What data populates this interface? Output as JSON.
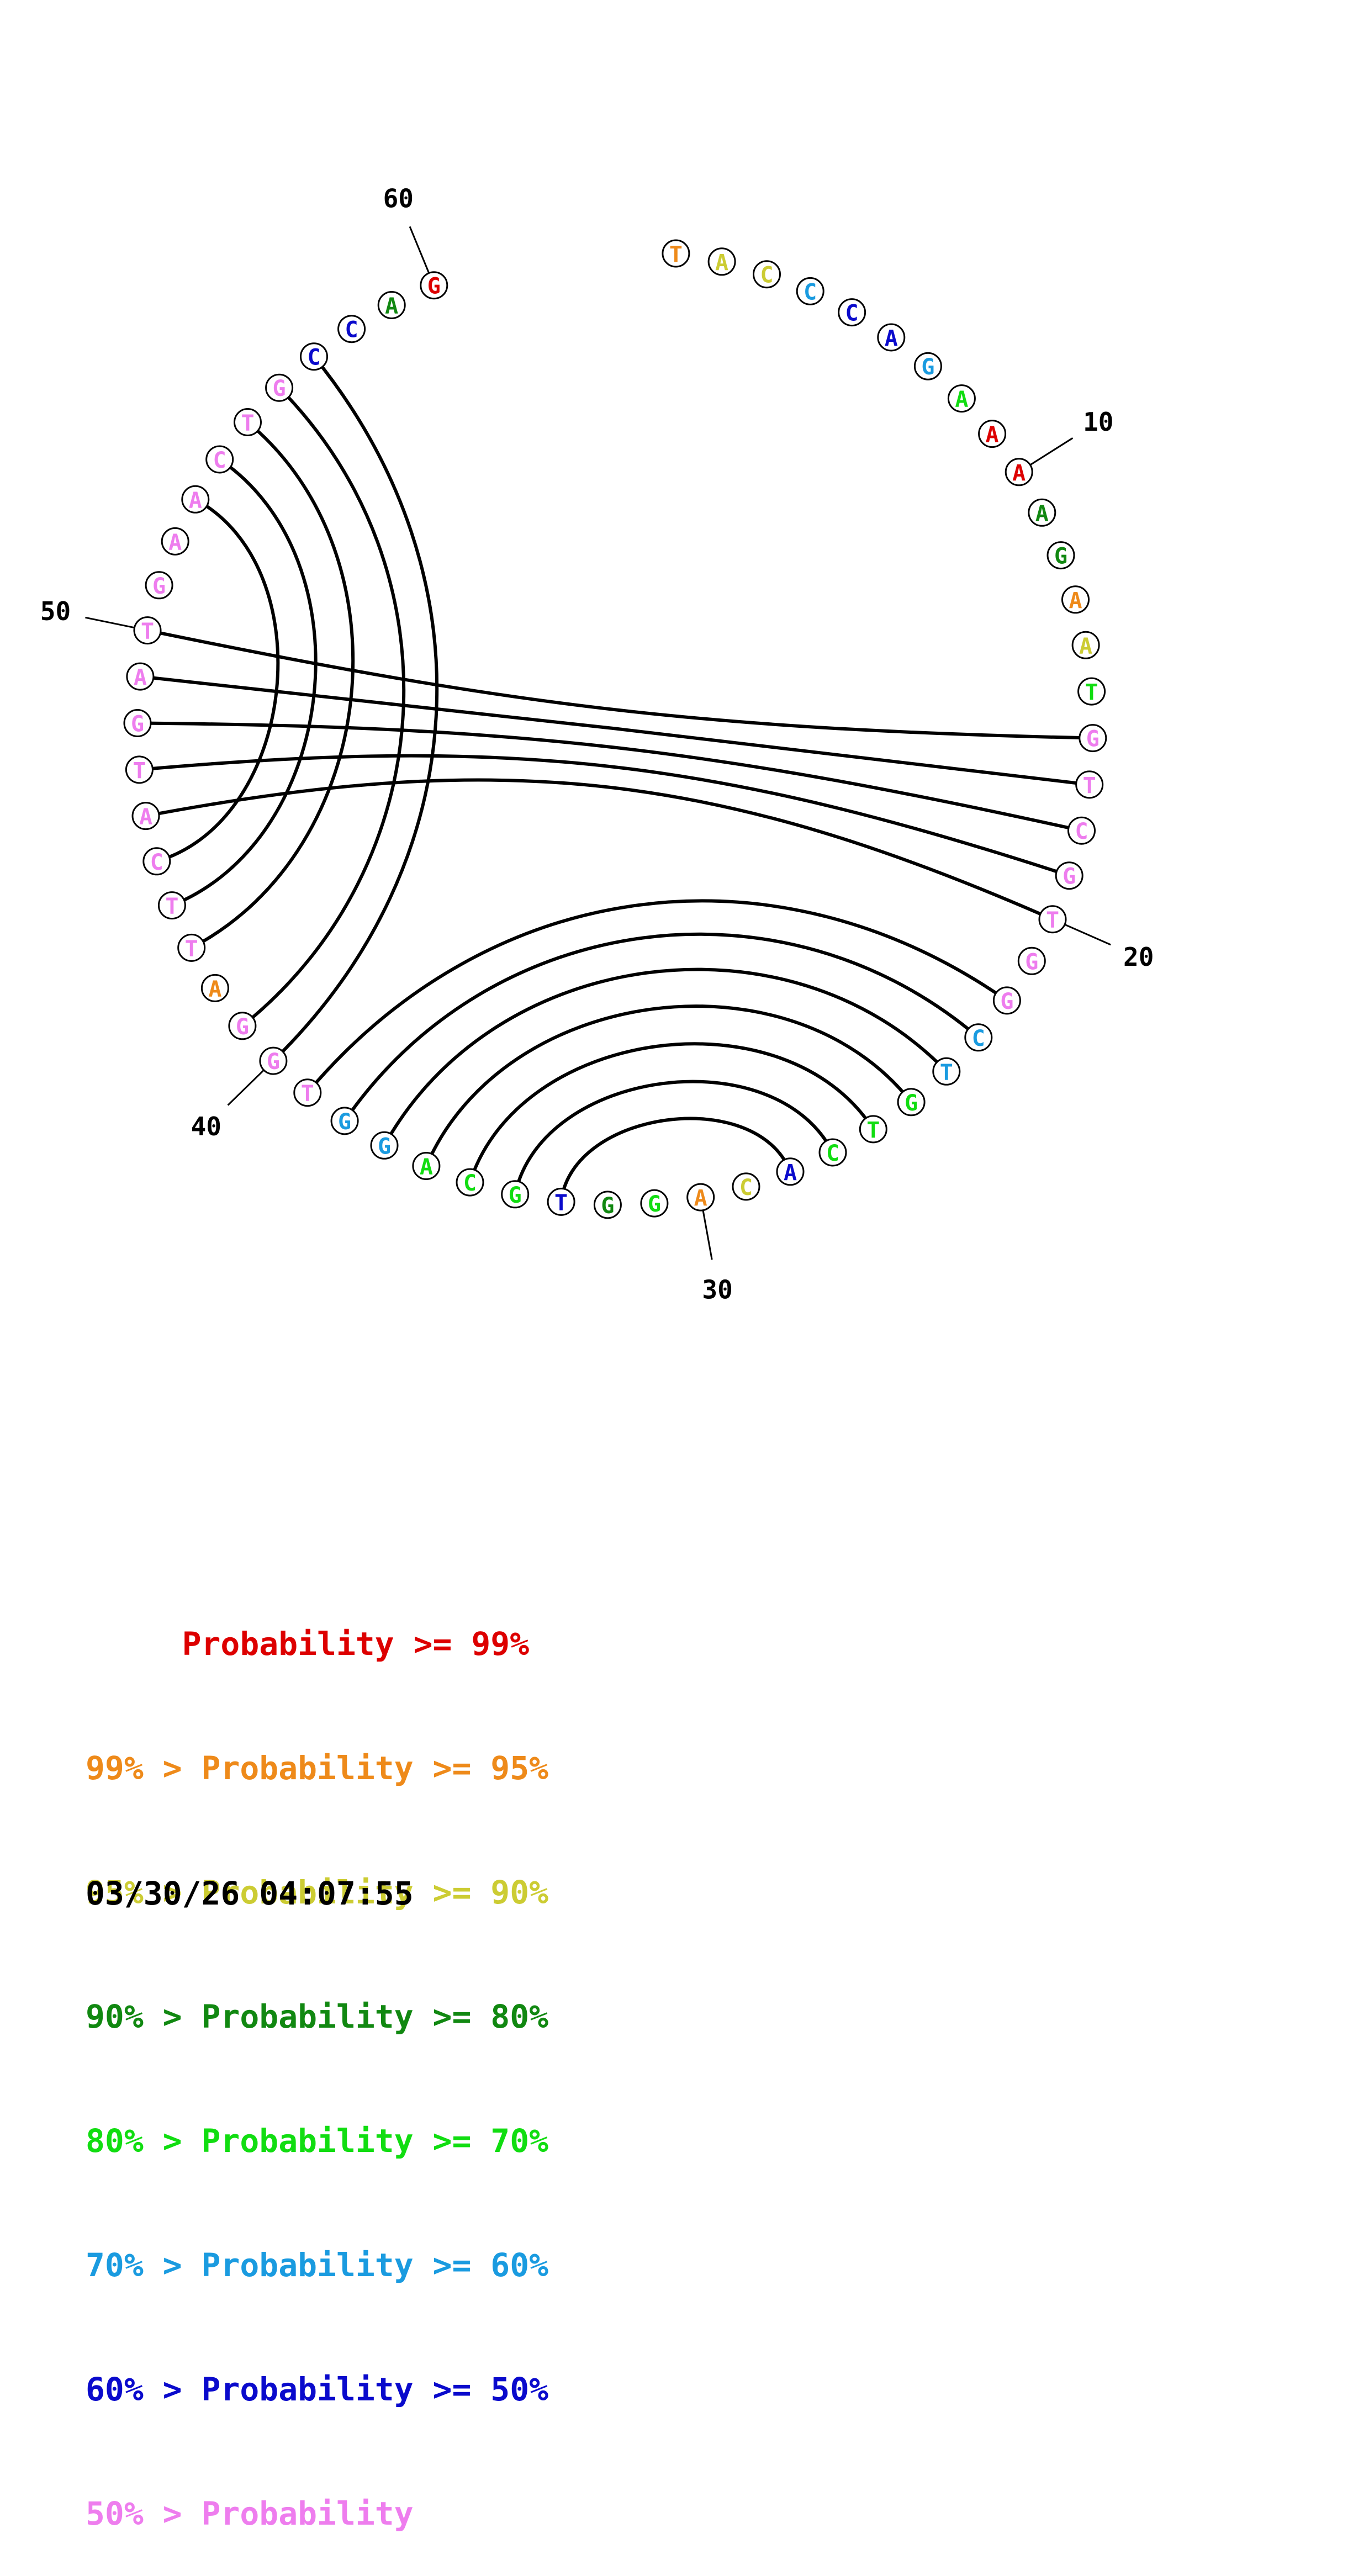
{
  "sequence": [
    "T",
    "A",
    "C",
    "C",
    "C",
    "A",
    "G",
    "A",
    "A",
    "A",
    "A",
    "G",
    "A",
    "A",
    "T",
    "G",
    "T",
    "C",
    "G",
    "T",
    "G",
    "G",
    "C",
    "T",
    "G",
    "T",
    "C",
    "A",
    "C",
    "A",
    "G",
    "G",
    "T",
    "G",
    "C",
    "A",
    "G",
    "G",
    "T",
    "G",
    "G",
    "A",
    "T",
    "T",
    "C",
    "A",
    "T",
    "G",
    "A",
    "T",
    "G",
    "A",
    "A",
    "C",
    "T",
    "G",
    "C",
    "C",
    "A",
    "G"
  ],
  "nucleotide_colors": [
    "#ee8a1a",
    "#cccc33",
    "#cccc33",
    "#1a9be0",
    "#0a0acc",
    "#0a0acc",
    "#1a9be0",
    "#11dd11",
    "#dd0000",
    "#dd0000",
    "#118811",
    "#118811",
    "#ee8a1a",
    "#cccc33",
    "#11dd11",
    "#ee7dee",
    "#ee7dee",
    "#ee7dee",
    "#ee7dee",
    "#ee7dee",
    "#ee7dee",
    "#ee7dee",
    "#1a9be0",
    "#1a9be0",
    "#11dd11",
    "#11dd11",
    "#11dd11",
    "#0a0acc",
    "#cccc33",
    "#ee8a1a",
    "#11dd11",
    "#118811",
    "#0a0acc",
    "#11dd11",
    "#11dd11",
    "#11dd11",
    "#1a9be0",
    "#1a9be0",
    "#ee7dee",
    "#ee7dee",
    "#ee7dee",
    "#ee8a1a",
    "#ee7dee",
    "#ee7dee",
    "#ee7dee",
    "#ee7dee",
    "#ee7dee",
    "#ee7dee",
    "#ee7dee",
    "#ee7dee",
    "#ee7dee",
    "#ee7dee",
    "#ee7dee",
    "#ee7dee",
    "#ee7dee",
    "#ee7dee",
    "#0a0acc",
    "#0a0acc",
    "#118811",
    "#dd0000"
  ],
  "pairs": [
    [
      16,
      50
    ],
    [
      17,
      49
    ],
    [
      18,
      48
    ],
    [
      19,
      47
    ],
    [
      20,
      46
    ],
    [
      22,
      39
    ],
    [
      23,
      38
    ],
    [
      24,
      37
    ],
    [
      25,
      36
    ],
    [
      26,
      35
    ],
    [
      27,
      34
    ],
    [
      28,
      33
    ],
    [
      43,
      55
    ],
    [
      44,
      54
    ],
    [
      45,
      53
    ],
    [
      40,
      57
    ],
    [
      41,
      56
    ]
  ],
  "position_labels": [
    {
      "position": 10,
      "text": "10"
    },
    {
      "position": 20,
      "text": "20"
    },
    {
      "position": 30,
      "text": "30"
    },
    {
      "position": 40,
      "text": "40"
    },
    {
      "position": 50,
      "text": "50"
    },
    {
      "position": 60,
      "text": "60"
    }
  ],
  "legend": [
    {
      "text": "     Probability >= 99%",
      "color": "#dd0000"
    },
    {
      "text": "99% > Probability >= 95%",
      "color": "#ee8a1a"
    },
    {
      "text": "95% > Probability >= 90%",
      "color": "#cccc33"
    },
    {
      "text": "90% > Probability >= 80%",
      "color": "#118811"
    },
    {
      "text": "80% > Probability >= 70%",
      "color": "#11dd11"
    },
    {
      "text": "70% > Probability >= 60%",
      "color": "#1a9be0"
    },
    {
      "text": "60% > Probability >= 50%",
      "color": "#0a0acc"
    },
    {
      "text": "50% > Probability",
      "color": "#ee7dee"
    }
  ],
  "timestamp": "03/30/26 04:07:55"
}
